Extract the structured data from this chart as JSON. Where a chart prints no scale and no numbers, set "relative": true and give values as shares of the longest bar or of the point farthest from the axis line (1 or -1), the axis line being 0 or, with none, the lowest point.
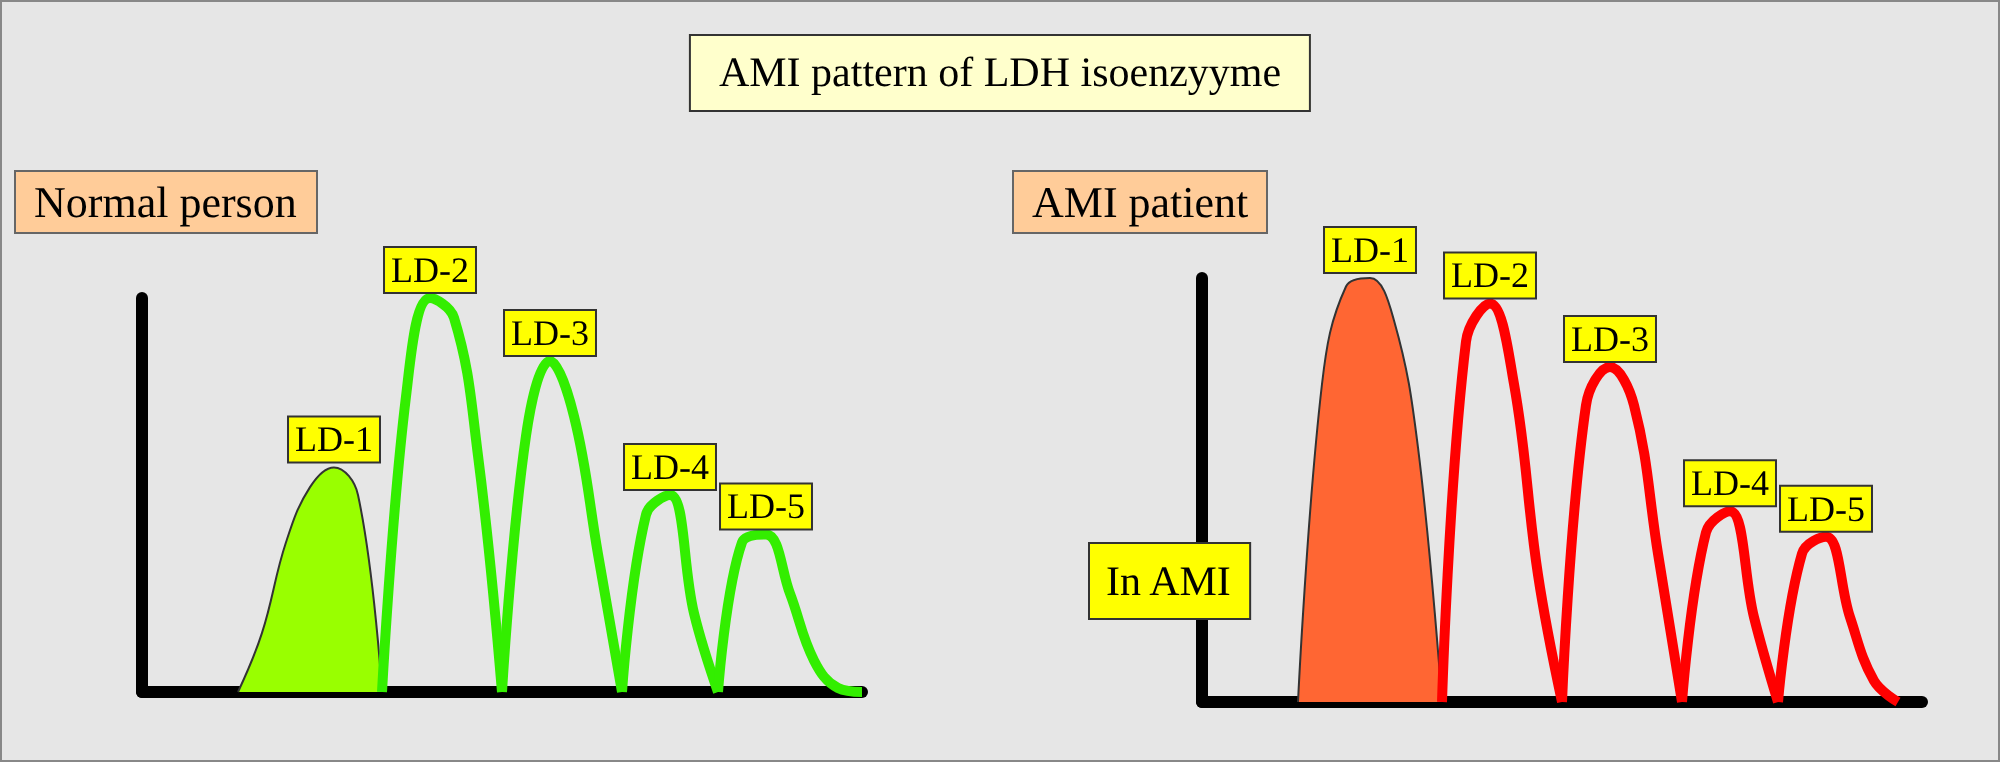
{
  "chart_data": [
    {
      "type": "line",
      "title": "Normal person",
      "annotations": [
        "AMI pattern of LDH isoenzyyme"
      ],
      "relative": true,
      "marker": "none",
      "grid": false,
      "legend": false,
      "categories": [
        null,
        null,
        null,
        null,
        null,
        null,
        null,
        null,
        null,
        null,
        null,
        null,
        null,
        null,
        null,
        null,
        null,
        null,
        null,
        null,
        null,
        null,
        null,
        null,
        null,
        null,
        null,
        null,
        null,
        null,
        null
      ],
      "series": [
        {
          "name": "LD-1",
          "type": "area",
          "color": "#99ff00",
          "values": [
            null,
            null,
            null,
            null,
            0,
            0.15,
            0.38,
            0.52,
            0.57,
            0.5,
            0,
            null,
            null,
            null,
            null,
            null,
            null,
            null,
            null,
            null,
            null,
            null,
            null,
            null,
            null,
            null,
            null,
            null,
            null,
            null,
            null
          ]
        },
        {
          "name": "LD-2",
          "color": "#33ee00",
          "values": [
            null,
            null,
            null,
            null,
            null,
            null,
            null,
            null,
            null,
            null,
            0,
            0.75,
            1,
            0.95,
            0.6,
            0,
            null,
            null,
            null,
            null,
            null,
            null,
            null,
            null,
            null,
            null,
            null,
            null,
            null,
            null,
            null
          ]
        },
        {
          "name": "LD-3",
          "color": "#33ee00",
          "values": [
            null,
            null,
            null,
            null,
            null,
            null,
            null,
            null,
            null,
            null,
            null,
            null,
            null,
            null,
            null,
            0,
            0.65,
            0.84,
            0.7,
            0.35,
            0,
            null,
            null,
            null,
            null,
            null,
            null,
            null,
            null,
            null,
            null
          ]
        },
        {
          "name": "LD-4",
          "color": "#33ee00",
          "values": [
            null,
            null,
            null,
            null,
            null,
            null,
            null,
            null,
            null,
            null,
            null,
            null,
            null,
            null,
            null,
            null,
            null,
            null,
            null,
            null,
            0,
            0.45,
            0.5,
            0.2,
            0,
            null,
            null,
            null,
            null,
            null,
            null
          ]
        },
        {
          "name": "LD-5",
          "color": "#33ee00",
          "values": [
            null,
            null,
            null,
            null,
            null,
            null,
            null,
            null,
            null,
            null,
            null,
            null,
            null,
            null,
            null,
            null,
            null,
            null,
            null,
            null,
            null,
            null,
            null,
            null,
            0,
            0.38,
            0.4,
            0.25,
            0.08,
            0.01,
            0
          ]
        }
      ]
    },
    {
      "type": "line",
      "title": "AMI patient",
      "annotations": [
        "In AMI"
      ],
      "relative": true,
      "marker": "none",
      "grid": false,
      "legend": false,
      "categories": [
        null,
        null,
        null,
        null,
        null,
        null,
        null,
        null,
        null,
        null,
        null,
        null,
        null,
        null,
        null,
        null,
        null,
        null,
        null,
        null,
        null,
        null,
        null,
        null,
        null,
        null,
        null,
        null,
        null,
        null,
        null
      ],
      "series": [
        {
          "name": "LD-1",
          "type": "area",
          "color": "#ff6633",
          "values": [
            null,
            null,
            null,
            null,
            0,
            0.75,
            0.98,
            1,
            0.9,
            0.6,
            0,
            null,
            null,
            null,
            null,
            null,
            null,
            null,
            null,
            null,
            null,
            null,
            null,
            null,
            null,
            null,
            null,
            null,
            null,
            null,
            null
          ]
        },
        {
          "name": "LD-2",
          "color": "#ff0000",
          "values": [
            null,
            null,
            null,
            null,
            null,
            null,
            null,
            null,
            null,
            null,
            0,
            0.85,
            0.94,
            0.75,
            0.3,
            0,
            null,
            null,
            null,
            null,
            null,
            null,
            null,
            null,
            null,
            null,
            null,
            null,
            null,
            null,
            null
          ]
        },
        {
          "name": "LD-3",
          "color": "#ff0000",
          "values": [
            null,
            null,
            null,
            null,
            null,
            null,
            null,
            null,
            null,
            null,
            null,
            null,
            null,
            null,
            null,
            0,
            0.7,
            0.79,
            0.7,
            0.35,
            0,
            null,
            null,
            null,
            null,
            null,
            null,
            null,
            null,
            null,
            null
          ]
        },
        {
          "name": "LD-4",
          "color": "#ff0000",
          "values": [
            null,
            null,
            null,
            null,
            null,
            null,
            null,
            null,
            null,
            null,
            null,
            null,
            null,
            null,
            null,
            null,
            null,
            null,
            null,
            null,
            0,
            0.4,
            0.45,
            0.2,
            0,
            null,
            null,
            null,
            null,
            null,
            null
          ]
        },
        {
          "name": "LD-5",
          "color": "#ff0000",
          "values": [
            null,
            null,
            null,
            null,
            null,
            null,
            null,
            null,
            null,
            null,
            null,
            null,
            null,
            null,
            null,
            null,
            null,
            null,
            null,
            null,
            null,
            null,
            null,
            null,
            0,
            0.35,
            0.39,
            0.2,
            0.05,
            0,
            null
          ]
        }
      ]
    }
  ]
}
